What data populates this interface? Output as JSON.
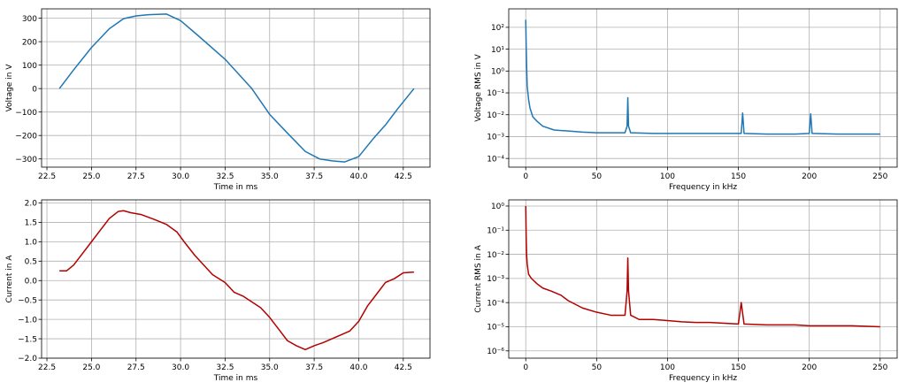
{
  "chart_data": [
    {
      "type": "line",
      "xlabel": "Time in ms",
      "ylabel": "Voltage in V",
      "xlim": [
        22.2,
        44.0
      ],
      "ylim": [
        -335,
        340
      ],
      "yscale": "linear",
      "grid": true,
      "xticks": [
        22.5,
        25.0,
        27.5,
        30.0,
        32.5,
        35.0,
        37.5,
        40.0,
        42.5
      ],
      "xtick_labels": [
        "22.5",
        "25.0",
        "27.5",
        "30.0",
        "32.5",
        "35.0",
        "37.5",
        "40.0",
        "42.5"
      ],
      "yticks": [
        -300,
        -200,
        -100,
        0,
        100,
        200,
        300
      ],
      "ytick_labels": [
        "−300",
        "−200",
        "−100",
        "0",
        "100",
        "200",
        "300"
      ],
      "series": [
        {
          "color": "#1f77b4",
          "x": [
            23.2,
            24.0,
            25.0,
            26.0,
            26.8,
            27.5,
            28.2,
            29.2,
            30.0,
            31.0,
            32.5,
            34.0,
            35.0,
            36.0,
            37.0,
            37.8,
            38.5,
            39.2,
            40.0,
            40.8,
            41.5,
            42.2,
            43.1
          ],
          "y": [
            0,
            80,
            175,
            255,
            298,
            310,
            315,
            318,
            290,
            225,
            125,
            0,
            -110,
            -190,
            -268,
            -300,
            -308,
            -313,
            -290,
            -215,
            -155,
            -85,
            0
          ]
        }
      ]
    },
    {
      "type": "line",
      "xlabel": "Frequency in kHz",
      "ylabel": "Voltage RMS in V",
      "xlim": [
        -12,
        262
      ],
      "ylim": [
        4e-05,
        700
      ],
      "yscale": "log",
      "grid": true,
      "xticks": [
        0,
        50,
        100,
        150,
        200,
        250
      ],
      "xtick_labels": [
        "0",
        "50",
        "100",
        "150",
        "200",
        "250"
      ],
      "yticks": [
        0.0001,
        0.001,
        0.01,
        0.1,
        1,
        10,
        100
      ],
      "ytick_labels": [
        "10⁻⁴",
        "10⁻³",
        "10⁻²",
        "10⁻¹",
        "10⁰",
        "10¹",
        "10²"
      ],
      "series": [
        {
          "color": "#1f77b4",
          "x": [
            0,
            0.3,
            0.6,
            1,
            2,
            3,
            5,
            8,
            12,
            20,
            30,
            40,
            50,
            60,
            70,
            71.5,
            72,
            72.5,
            74,
            90,
            110,
            130,
            152,
            153,
            154,
            170,
            190,
            200,
            201,
            202,
            220,
            240,
            250
          ],
          "y": [
            220,
            15,
            2,
            0.2,
            0.05,
            0.02,
            0.008,
            0.005,
            0.003,
            0.002,
            0.0018,
            0.0016,
            0.0015,
            0.0015,
            0.0015,
            0.003,
            0.06,
            0.003,
            0.0015,
            0.0014,
            0.0014,
            0.0014,
            0.0014,
            0.012,
            0.0014,
            0.0013,
            0.0013,
            0.0014,
            0.011,
            0.0014,
            0.0013,
            0.0013,
            0.0013
          ]
        }
      ]
    },
    {
      "type": "line",
      "xlabel": "Time in ms",
      "ylabel": "Current in A",
      "xlim": [
        22.2,
        44.0
      ],
      "ylim": [
        -2.0,
        2.08
      ],
      "yscale": "linear",
      "grid": true,
      "xticks": [
        22.5,
        25.0,
        27.5,
        30.0,
        32.5,
        35.0,
        37.5,
        40.0,
        42.5
      ],
      "xtick_labels": [
        "22.5",
        "25.0",
        "27.5",
        "30.0",
        "32.5",
        "35.0",
        "37.5",
        "40.0",
        "42.5"
      ],
      "yticks": [
        -2.0,
        -1.5,
        -1.0,
        -0.5,
        0.0,
        0.5,
        1.0,
        1.5,
        2.0
      ],
      "ytick_labels": [
        "−2.0",
        "−1.5",
        "−1.0",
        "−0.5",
        "0.0",
        "0.5",
        "1.0",
        "1.5",
        "2.0"
      ],
      "series": [
        {
          "color": "#b30000",
          "x": [
            23.2,
            23.6,
            24.0,
            24.5,
            25.0,
            25.5,
            26.0,
            26.5,
            26.8,
            27.2,
            27.8,
            28.5,
            29.2,
            29.8,
            30.2,
            30.8,
            31.2,
            31.8,
            32.5,
            33.0,
            33.5,
            34.0,
            34.5,
            35.0,
            35.5,
            36.0,
            36.5,
            37.0,
            37.5,
            38.0,
            38.5,
            39.0,
            39.5,
            40.0,
            40.5,
            41.0,
            41.5,
            42.0,
            42.5,
            43.1
          ],
          "y": [
            0.25,
            0.25,
            0.4,
            0.7,
            1.0,
            1.3,
            1.6,
            1.78,
            1.8,
            1.75,
            1.7,
            1.58,
            1.45,
            1.25,
            1.0,
            0.65,
            0.45,
            0.15,
            -0.05,
            -0.3,
            -0.4,
            -0.55,
            -0.7,
            -0.95,
            -1.25,
            -1.55,
            -1.68,
            -1.78,
            -1.68,
            -1.6,
            -1.5,
            -1.4,
            -1.3,
            -1.05,
            -0.65,
            -0.35,
            -0.05,
            0.05,
            0.2,
            0.22
          ]
        }
      ]
    },
    {
      "type": "line",
      "xlabel": "Frequency in kHz",
      "ylabel": "Current RMS in A",
      "xlim": [
        -12,
        262
      ],
      "ylim": [
        5e-07,
        1.8
      ],
      "yscale": "log",
      "grid": true,
      "xticks": [
        0,
        50,
        100,
        150,
        200,
        250
      ],
      "xtick_labels": [
        "0",
        "50",
        "100",
        "150",
        "200",
        "250"
      ],
      "yticks": [
        1e-06,
        1e-05,
        0.0001,
        0.001,
        0.01,
        0.1,
        1
      ],
      "ytick_labels": [
        "10⁻⁶",
        "10⁻⁵",
        "10⁻⁴",
        "10⁻³",
        "10⁻²",
        "10⁻¹",
        "10⁰"
      ],
      "series": [
        {
          "color": "#b30000",
          "x": [
            0,
            0.3,
            0.6,
            1,
            2,
            4,
            8,
            12,
            18,
            25,
            30,
            40,
            50,
            60,
            70,
            71.5,
            72,
            72.5,
            74,
            80,
            90,
            100,
            110,
            120,
            130,
            140,
            150,
            152,
            154,
            170,
            190,
            200,
            210,
            230,
            250
          ],
          "y": [
            1.0,
            0.05,
            0.01,
            0.004,
            0.0015,
            0.001,
            0.0006,
            0.0004,
            0.0003,
            0.0002,
            0.00012,
            6e-05,
            4e-05,
            3e-05,
            3e-05,
            0.0003,
            0.007,
            0.0003,
            3e-05,
            2e-05,
            2e-05,
            1.8e-05,
            1.6e-05,
            1.5e-05,
            1.5e-05,
            1.4e-05,
            1.3e-05,
            0.0001,
            1.3e-05,
            1.2e-05,
            1.2e-05,
            1.1e-05,
            1.1e-05,
            1.1e-05,
            1e-05
          ]
        }
      ]
    }
  ]
}
